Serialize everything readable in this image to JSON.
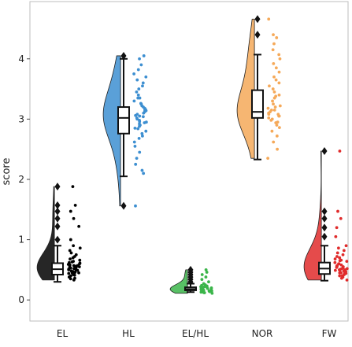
{
  "chart_data": {
    "type": "raincloud",
    "title": "",
    "xlabel": "",
    "ylabel": "score",
    "ylim": [
      -0.35,
      4.95
    ],
    "yticks": [
      0,
      1,
      2,
      3,
      4
    ],
    "grid": false,
    "categories": [
      "EL",
      "HL",
      "EL/HL",
      "NOR",
      "FW"
    ],
    "groups": [
      {
        "name": "EL",
        "color": "#000000",
        "box": {
          "whisker_low": 0.3,
          "q1": 0.42,
          "median": 0.51,
          "q3": 0.61,
          "whisker_high": 0.9
        },
        "outliers": [
          1.0,
          1.22,
          1.35,
          1.47,
          1.57,
          1.88
        ],
        "points": [
          0.33,
          0.36,
          0.38,
          0.4,
          0.42,
          0.43,
          0.44,
          0.45,
          0.46,
          0.47,
          0.48,
          0.49,
          0.5,
          0.51,
          0.52,
          0.53,
          0.54,
          0.55,
          0.56,
          0.57,
          0.58,
          0.59,
          0.6,
          0.61,
          0.62,
          0.64,
          0.66,
          0.68,
          0.7,
          0.72,
          0.75,
          0.78,
          0.82,
          0.86,
          0.9,
          0.35,
          0.41,
          0.47,
          0.53,
          0.57,
          0.63,
          0.45,
          0.5,
          0.55,
          1.0,
          1.22,
          1.35,
          1.47,
          1.57,
          1.88
        ]
      },
      {
        "name": "HL",
        "color": "#3d8fd1",
        "box": {
          "whisker_low": 2.05,
          "q1": 2.76,
          "median": 3.02,
          "q3": 3.2,
          "whisker_high": 4.0
        },
        "outliers": [
          1.56,
          4.05
        ],
        "points": [
          2.1,
          2.15,
          2.25,
          2.35,
          2.45,
          2.55,
          2.62,
          2.68,
          2.72,
          2.76,
          2.8,
          2.84,
          2.88,
          2.9,
          2.92,
          2.94,
          2.96,
          2.98,
          3.0,
          3.02,
          3.04,
          3.06,
          3.08,
          3.1,
          3.12,
          3.14,
          3.16,
          3.18,
          3.2,
          3.22,
          3.26,
          3.3,
          3.35,
          3.4,
          3.45,
          3.5,
          3.55,
          3.6,
          3.65,
          3.7,
          3.75,
          3.82,
          3.9,
          4.0,
          2.85,
          2.95,
          3.05,
          3.15,
          3.25,
          3.35,
          1.56,
          4.05
        ]
      },
      {
        "name": "EL/HL",
        "color": "#3bb54a",
        "box": {
          "whisker_low": 0.13,
          "q1": 0.16,
          "median": 0.18,
          "q3": 0.21,
          "whisker_high": 0.27
        },
        "outliers": [
          0.3,
          0.34,
          0.38,
          0.42,
          0.46,
          0.5
        ],
        "points": [
          0.11,
          0.12,
          0.13,
          0.13,
          0.14,
          0.14,
          0.15,
          0.15,
          0.16,
          0.16,
          0.17,
          0.17,
          0.18,
          0.18,
          0.19,
          0.19,
          0.2,
          0.2,
          0.21,
          0.21,
          0.22,
          0.23,
          0.24,
          0.25,
          0.27,
          0.12,
          0.15,
          0.18,
          0.2,
          0.22,
          0.3,
          0.34,
          0.38,
          0.42,
          0.46,
          0.5
        ]
      },
      {
        "name": "NOR",
        "color": "#f5a959",
        "box": {
          "whisker_low": 2.33,
          "q1": 3.02,
          "median": 3.12,
          "q3": 3.48,
          "whisker_high": 4.07
        },
        "outliers": [
          4.4,
          4.66
        ],
        "points": [
          2.35,
          2.5,
          2.62,
          2.72,
          2.8,
          2.86,
          2.9,
          2.94,
          2.98,
          3.0,
          3.02,
          3.05,
          3.08,
          3.1,
          3.12,
          3.15,
          3.18,
          3.2,
          3.25,
          3.3,
          3.35,
          3.4,
          3.45,
          3.5,
          3.55,
          3.6,
          3.65,
          3.7,
          3.78,
          3.85,
          3.92,
          4.0,
          4.07,
          4.15,
          4.25,
          4.35,
          2.95,
          3.05,
          3.15,
          3.22,
          3.38,
          3.08,
          4.4,
          4.66
        ]
      },
      {
        "name": "FW",
        "color": "#e02b2b",
        "box": {
          "whisker_low": 0.32,
          "q1": 0.43,
          "median": 0.52,
          "q3": 0.62,
          "whisker_high": 0.9
        },
        "outliers": [
          1.05,
          1.2,
          1.35,
          1.47,
          2.47
        ],
        "points": [
          0.33,
          0.36,
          0.38,
          0.4,
          0.42,
          0.44,
          0.45,
          0.46,
          0.47,
          0.48,
          0.49,
          0.5,
          0.51,
          0.52,
          0.53,
          0.54,
          0.55,
          0.56,
          0.57,
          0.58,
          0.6,
          0.62,
          0.64,
          0.66,
          0.68,
          0.7,
          0.72,
          0.75,
          0.78,
          0.82,
          0.86,
          0.9,
          0.4,
          0.45,
          0.5,
          0.55,
          0.6,
          0.65,
          0.44,
          0.52,
          1.05,
          1.2,
          1.35,
          1.47,
          2.47
        ]
      }
    ]
  }
}
